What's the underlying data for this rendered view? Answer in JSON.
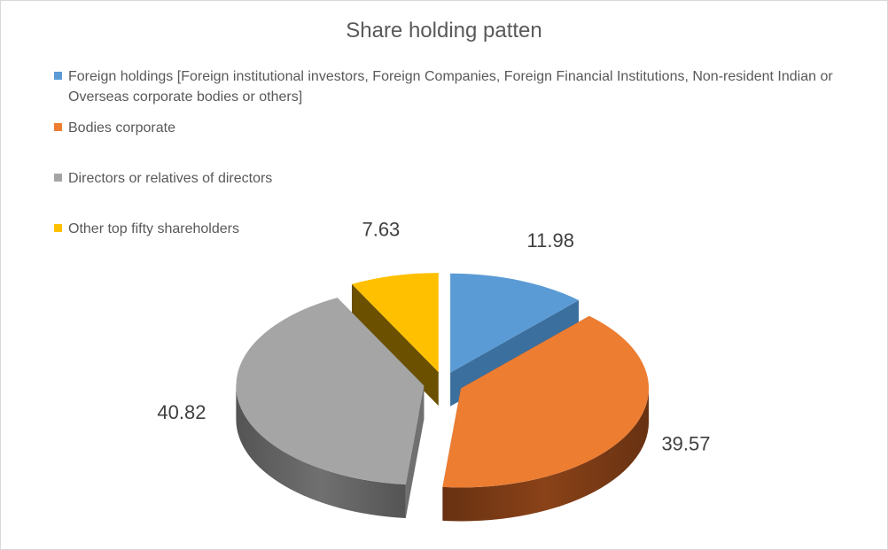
{
  "chart_data": {
    "type": "pie",
    "title": "Share holding patten",
    "legend_position": "top",
    "categories": [
      "Foreign holdings [Foreign institutional investors, Foreign Companies, Foreign Financial Institutions, Non-resident Indian or Overseas corporate bodies or others]",
      "Bodies corporate",
      "Directors or relatives of directors",
      "Other top fifty shareholders"
    ],
    "values": [
      11.98,
      39.57,
      40.82,
      7.63
    ],
    "labels": [
      "11.98",
      "39.57",
      "40.82",
      "7.63"
    ],
    "colors": [
      "#5b9bd5",
      "#ed7d31",
      "#a5a5a5",
      "#ffc000"
    ],
    "side_colors": [
      "#3b6f9e",
      "#8a4218",
      "#707070",
      "#6b5000"
    ]
  }
}
